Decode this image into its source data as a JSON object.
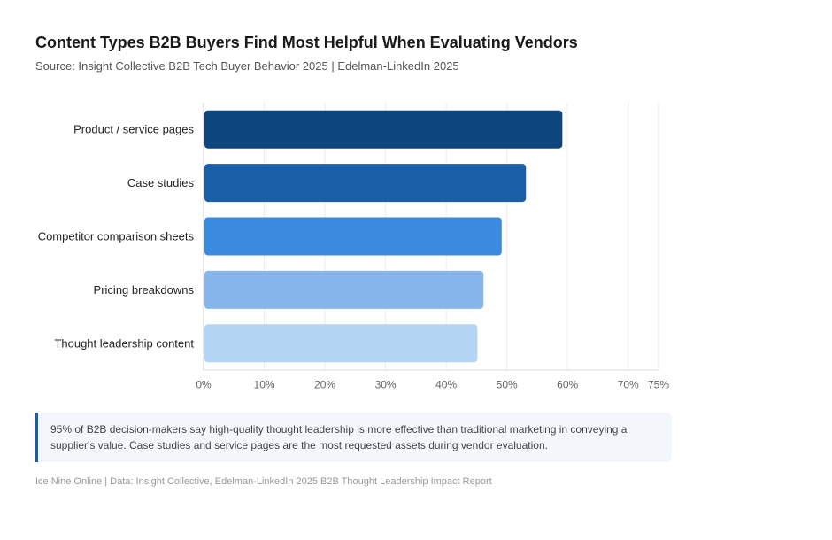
{
  "header": {
    "title": "Content Types B2B Buyers Find Most Helpful When Evaluating Vendors",
    "subtitle": "Source: Insight Collective B2B Tech Buyer Behavior 2025 | Edelman-LinkedIn 2025"
  },
  "chart_data": {
    "type": "bar",
    "orientation": "horizontal",
    "title": "",
    "xlabel": "",
    "ylabel": "",
    "categories": [
      "Product / service pages",
      "Case studies",
      "Competitor comparison sheets",
      "Pricing breakdowns",
      "Thought leadership content"
    ],
    "values": [
      59,
      53,
      49,
      46,
      45
    ],
    "colors": [
      "#0d467f",
      "#1a5ea8",
      "#3a8be0",
      "#86b6ec",
      "#b4d5f4"
    ],
    "xlim": [
      0,
      75
    ],
    "x_ticks": [
      0,
      10,
      20,
      30,
      40,
      50,
      60,
      70,
      75
    ],
    "x_tick_labels": [
      "0%",
      "10%",
      "20%",
      "30%",
      "40%",
      "50%",
      "60%",
      "70%",
      "75%"
    ],
    "grid": "vertical",
    "legend": "none"
  },
  "callout": {
    "text": "95% of B2B decision-makers say high-quality thought leadership is more effective than traditional marketing in conveying a supplier's value. Case studies and service pages are the most requested assets during vendor evaluation.",
    "accent_color": "#1a5ea8"
  },
  "footer": {
    "text": "Ice Nine Online | Data: Insight Collective, Edelman-LinkedIn 2025 B2B Thought Leadership Impact Report"
  }
}
